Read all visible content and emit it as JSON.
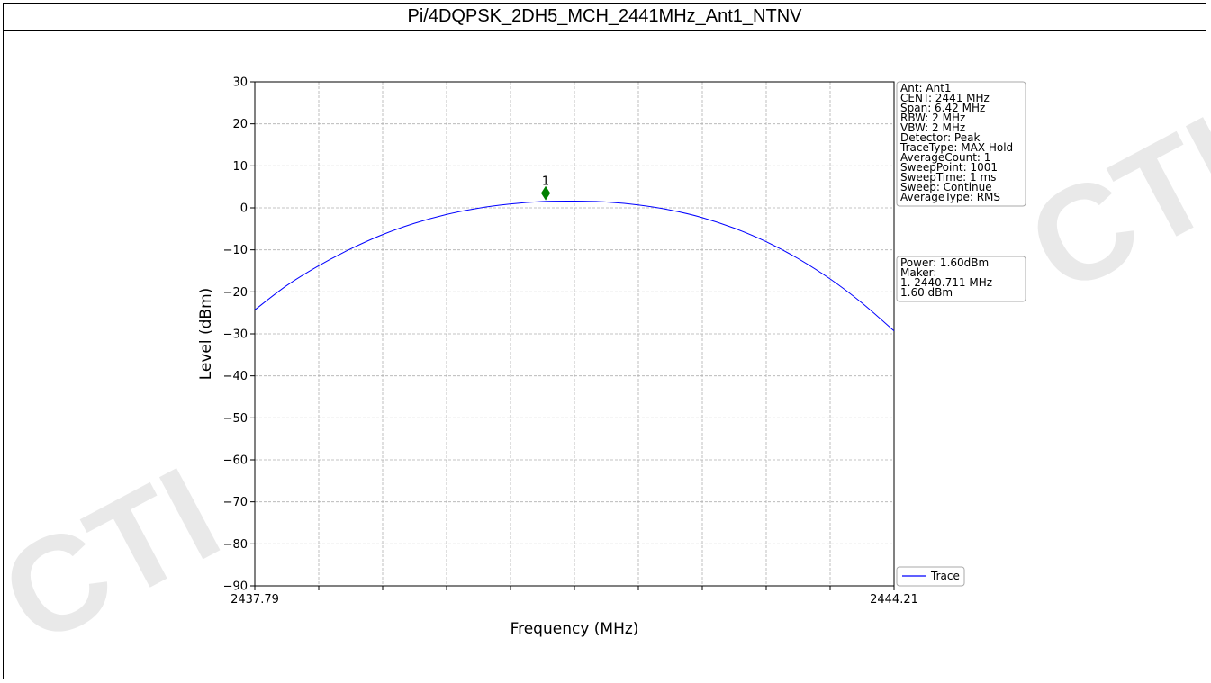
{
  "page": {
    "title": "Pi/4DQPSK_2DH5_MCH_2441MHz_Ant1_NTNV"
  },
  "colors": {
    "trace": "#0000ff",
    "marker": "#008000",
    "grid": "#b0b0b0",
    "box_border": "#aaaaaa"
  },
  "chart_data": {
    "type": "line",
    "title": "Pi/4DQPSK_2DH5_MCH_2441MHz_Ant1_NTNV",
    "xlabel": "Frequency (MHz)",
    "ylabel": "Level (dBm)",
    "xlim": [
      2437.79,
      2444.21
    ],
    "ylim": [
      -90,
      30
    ],
    "x_tick_labels": [
      "2437.79",
      "2444.21"
    ],
    "y_ticks": [
      30,
      20,
      10,
      0,
      -10,
      -20,
      -30,
      -40,
      -50,
      -60,
      -70,
      -80,
      -90
    ],
    "y_tick_labels": [
      "30",
      "20",
      "10",
      "0",
      "−10",
      "−20",
      "−30",
      "−40",
      "−50",
      "−60",
      "−70",
      "−80",
      "−90"
    ],
    "grid": true,
    "legend": {
      "placement": "lower-right",
      "entries": [
        "Trace"
      ]
    },
    "series": [
      {
        "name": "Trace",
        "x": [
          2437.79,
          2438.11,
          2438.43,
          2438.75,
          2439.07,
          2439.39,
          2439.71,
          2440.03,
          2440.35,
          2440.67,
          2441.0,
          2441.32,
          2441.64,
          2441.96,
          2442.28,
          2442.6,
          2442.92,
          2443.24,
          2443.56,
          2443.88,
          2444.21
        ],
        "y": [
          -24.3,
          -18.5,
          -13.8,
          -9.8,
          -6.4,
          -3.7,
          -1.6,
          -0.1,
          0.9,
          1.5,
          1.6,
          1.4,
          0.7,
          -0.5,
          -2.3,
          -4.8,
          -8.0,
          -12.0,
          -16.8,
          -22.5,
          -29.3
        ]
      }
    ],
    "markers": [
      {
        "label": "1",
        "x": 2440.711,
        "y": 3.5
      }
    ],
    "settings_box": [
      "Ant: Ant1",
      "CENT: 2441 MHz",
      "Span: 6.42 MHz",
      "RBW: 2 MHz",
      "VBW: 2 MHz",
      "Detector: Peak",
      "TraceType: MAX Hold",
      "AverageCount: 1",
      "SweepPoint: 1001",
      "SweepTime: 1 ms",
      "Sweep: Continue",
      "AverageType: RMS"
    ],
    "result_box": [
      "Power: 1.60dBm",
      "Maker:",
      "1. 2440.711 MHz",
      "    1.60 dBm"
    ]
  }
}
